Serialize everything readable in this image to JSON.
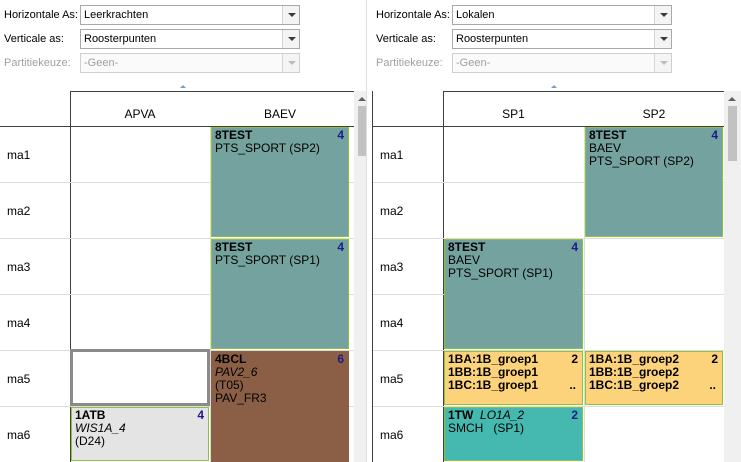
{
  "left": {
    "horizontal_label": "Horizontale As:",
    "horizontal_value": "Leerkrachten",
    "vertical_label": "Verticale as:",
    "vertical_value": "Roosterpunten",
    "partition_label": "Partitiekeuze:",
    "partition_value": "-Geen-",
    "columns": [
      "APVA",
      "BAEV"
    ],
    "rows": [
      "ma1",
      "ma2",
      "ma3",
      "ma4",
      "ma5",
      "ma6"
    ],
    "lessons": [
      {
        "code": "8TEST",
        "count": "4",
        "line2": "PTS_SPORT (SP2)"
      },
      {
        "code": "8TEST",
        "count": "4",
        "line2": "PTS_SPORT (SP1)"
      },
      {
        "code": "4BCL",
        "count": "6",
        "room": "PAV2_6",
        "line3": "(T05)",
        "line4": "PAV_FR3"
      },
      {
        "code": "1ATB",
        "count": "4",
        "room": "WIS1A_4",
        "line3": "(D24)"
      }
    ]
  },
  "right": {
    "horizontal_label": "Horizontale As:",
    "horizontal_value": "Lokalen",
    "vertical_label": "Verticale as:",
    "vertical_value": "Roosterpunten",
    "partition_label": "Partitiekeuze:",
    "partition_value": "-Geen-",
    "columns": [
      "SP1",
      "SP2"
    ],
    "rows": [
      "ma1",
      "ma2",
      "ma3",
      "ma4",
      "ma5",
      "ma6"
    ],
    "lessons": [
      {
        "code": "8TEST",
        "count": "4",
        "line2": "BAEV",
        "line3": "PTS_SPORT (SP2)"
      },
      {
        "code": "8TEST",
        "count": "4",
        "line2": "BAEV",
        "line3": "PTS_SPORT (SP1)"
      },
      {
        "count": "2",
        "lines": [
          "1BA:1B_groep1",
          "1BB:1B_groep1",
          "1BC:1B_groep1"
        ],
        "more": ".."
      },
      {
        "count": "2",
        "lines": [
          "1BA:1B_groep2",
          "1BB:1B_groep2",
          "1BC:1B_groep2"
        ],
        "more": ".."
      },
      {
        "code": "1TW",
        "room": "LO1A_2",
        "count": "2",
        "line2": "SMCH   (SP1)"
      }
    ]
  },
  "colors": {
    "teal_gray": "#74a29f",
    "brown": "#8a5f45",
    "orange": "#fcd27a",
    "teal": "#45b9b0",
    "light_gray": "#e4e4e4",
    "border_green": "#8cc23c"
  }
}
